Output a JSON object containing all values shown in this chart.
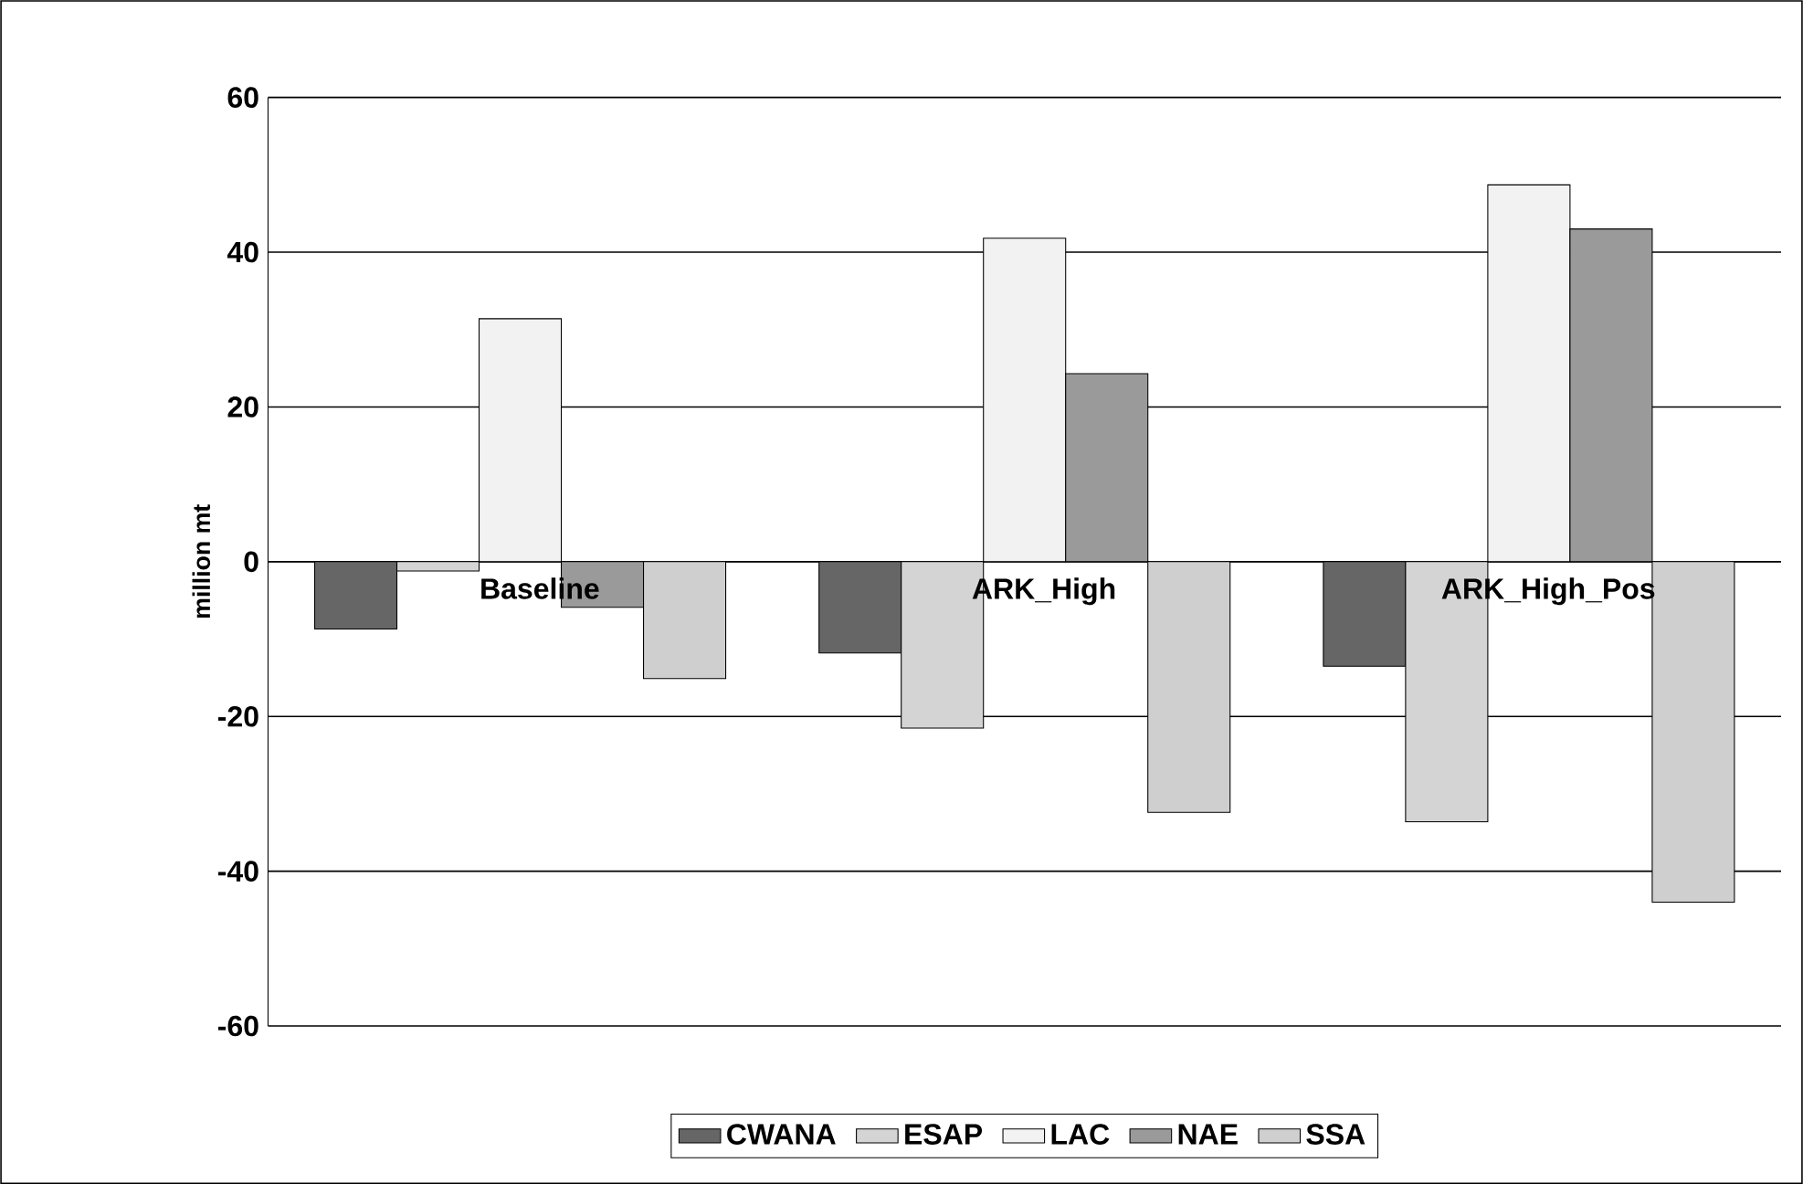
{
  "chart_data": {
    "type": "bar",
    "ylabel": "million mt",
    "categories": [
      "Baseline",
      "ARK_High",
      "ARK_High_Pos"
    ],
    "series": [
      {
        "name": "CWANA",
        "color": "#666666",
        "values": [
          -8.7,
          -11.8,
          -13.5
        ]
      },
      {
        "name": "ESAP",
        "color": "#d4d4d4",
        "values": [
          -1.2,
          -21.5,
          -33.6
        ]
      },
      {
        "name": "LAC",
        "color": "#f2f2f2",
        "values": [
          31.4,
          41.8,
          48.7
        ]
      },
      {
        "name": "NAE",
        "color": "#9a9a9a",
        "values": [
          -5.9,
          24.3,
          43.0
        ]
      },
      {
        "name": "SSA",
        "color": "#cfcfcf",
        "values": [
          -15.1,
          -32.4,
          -44.0
        ]
      }
    ],
    "ylim": [
      -60,
      60
    ],
    "yticks": [
      -60,
      -40,
      -20,
      0,
      20,
      40,
      60
    ],
    "grid": "y",
    "legend": "bottom"
  }
}
